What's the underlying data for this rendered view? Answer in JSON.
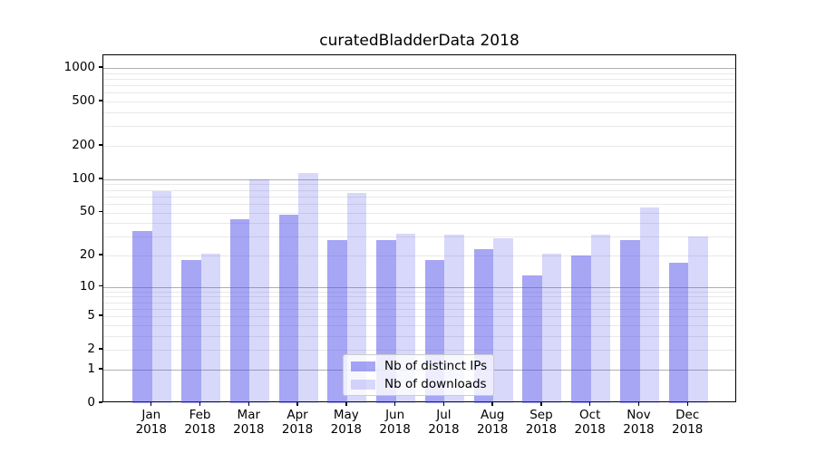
{
  "title": "curatedBladderData 2018",
  "chart_data": {
    "type": "bar",
    "title": "curatedBladderData 2018",
    "scale": "log1p",
    "grid": true,
    "categories": [
      "Jan",
      "Feb",
      "Mar",
      "Apr",
      "May",
      "Jun",
      "Jul",
      "Aug",
      "Sep",
      "Oct",
      "Nov",
      "Dec"
    ],
    "category_year": "2018",
    "series": [
      {
        "name": "Nb of distinct IPs",
        "color_hex": "#a8a8f2",
        "color_rgba": "rgba(70,70,235,0.48)",
        "values": [
          34,
          18,
          43,
          48,
          28,
          28,
          18,
          23,
          13,
          20,
          28,
          17
        ]
      },
      {
        "name": "Nb of downloads",
        "color_hex": "#d8d8fa",
        "color_rgba": "rgba(70,70,235,0.21)",
        "values": [
          78,
          21,
          100,
          113,
          75,
          32,
          31,
          29,
          21,
          31,
          55,
          30
        ]
      }
    ],
    "yticks": [
      0,
      1,
      2,
      5,
      10,
      20,
      50,
      100,
      200,
      500,
      1000
    ],
    "major_gridlines": [
      1,
      10,
      100,
      1000
    ],
    "minor_gridline_decades": [
      1,
      10,
      100
    ],
    "ylim": [
      0,
      1300
    ],
    "xlabel": "",
    "ylabel": "",
    "legend_position": "lower center"
  },
  "colors": {
    "bar_dark": "#a8a8f2",
    "bar_light": "#d8d8fa",
    "major_grid": "#b0b0b0",
    "minor_grid": "#e9e9e9",
    "frame": "#000000",
    "text": "#000000",
    "legend_border": "#cccccc"
  }
}
